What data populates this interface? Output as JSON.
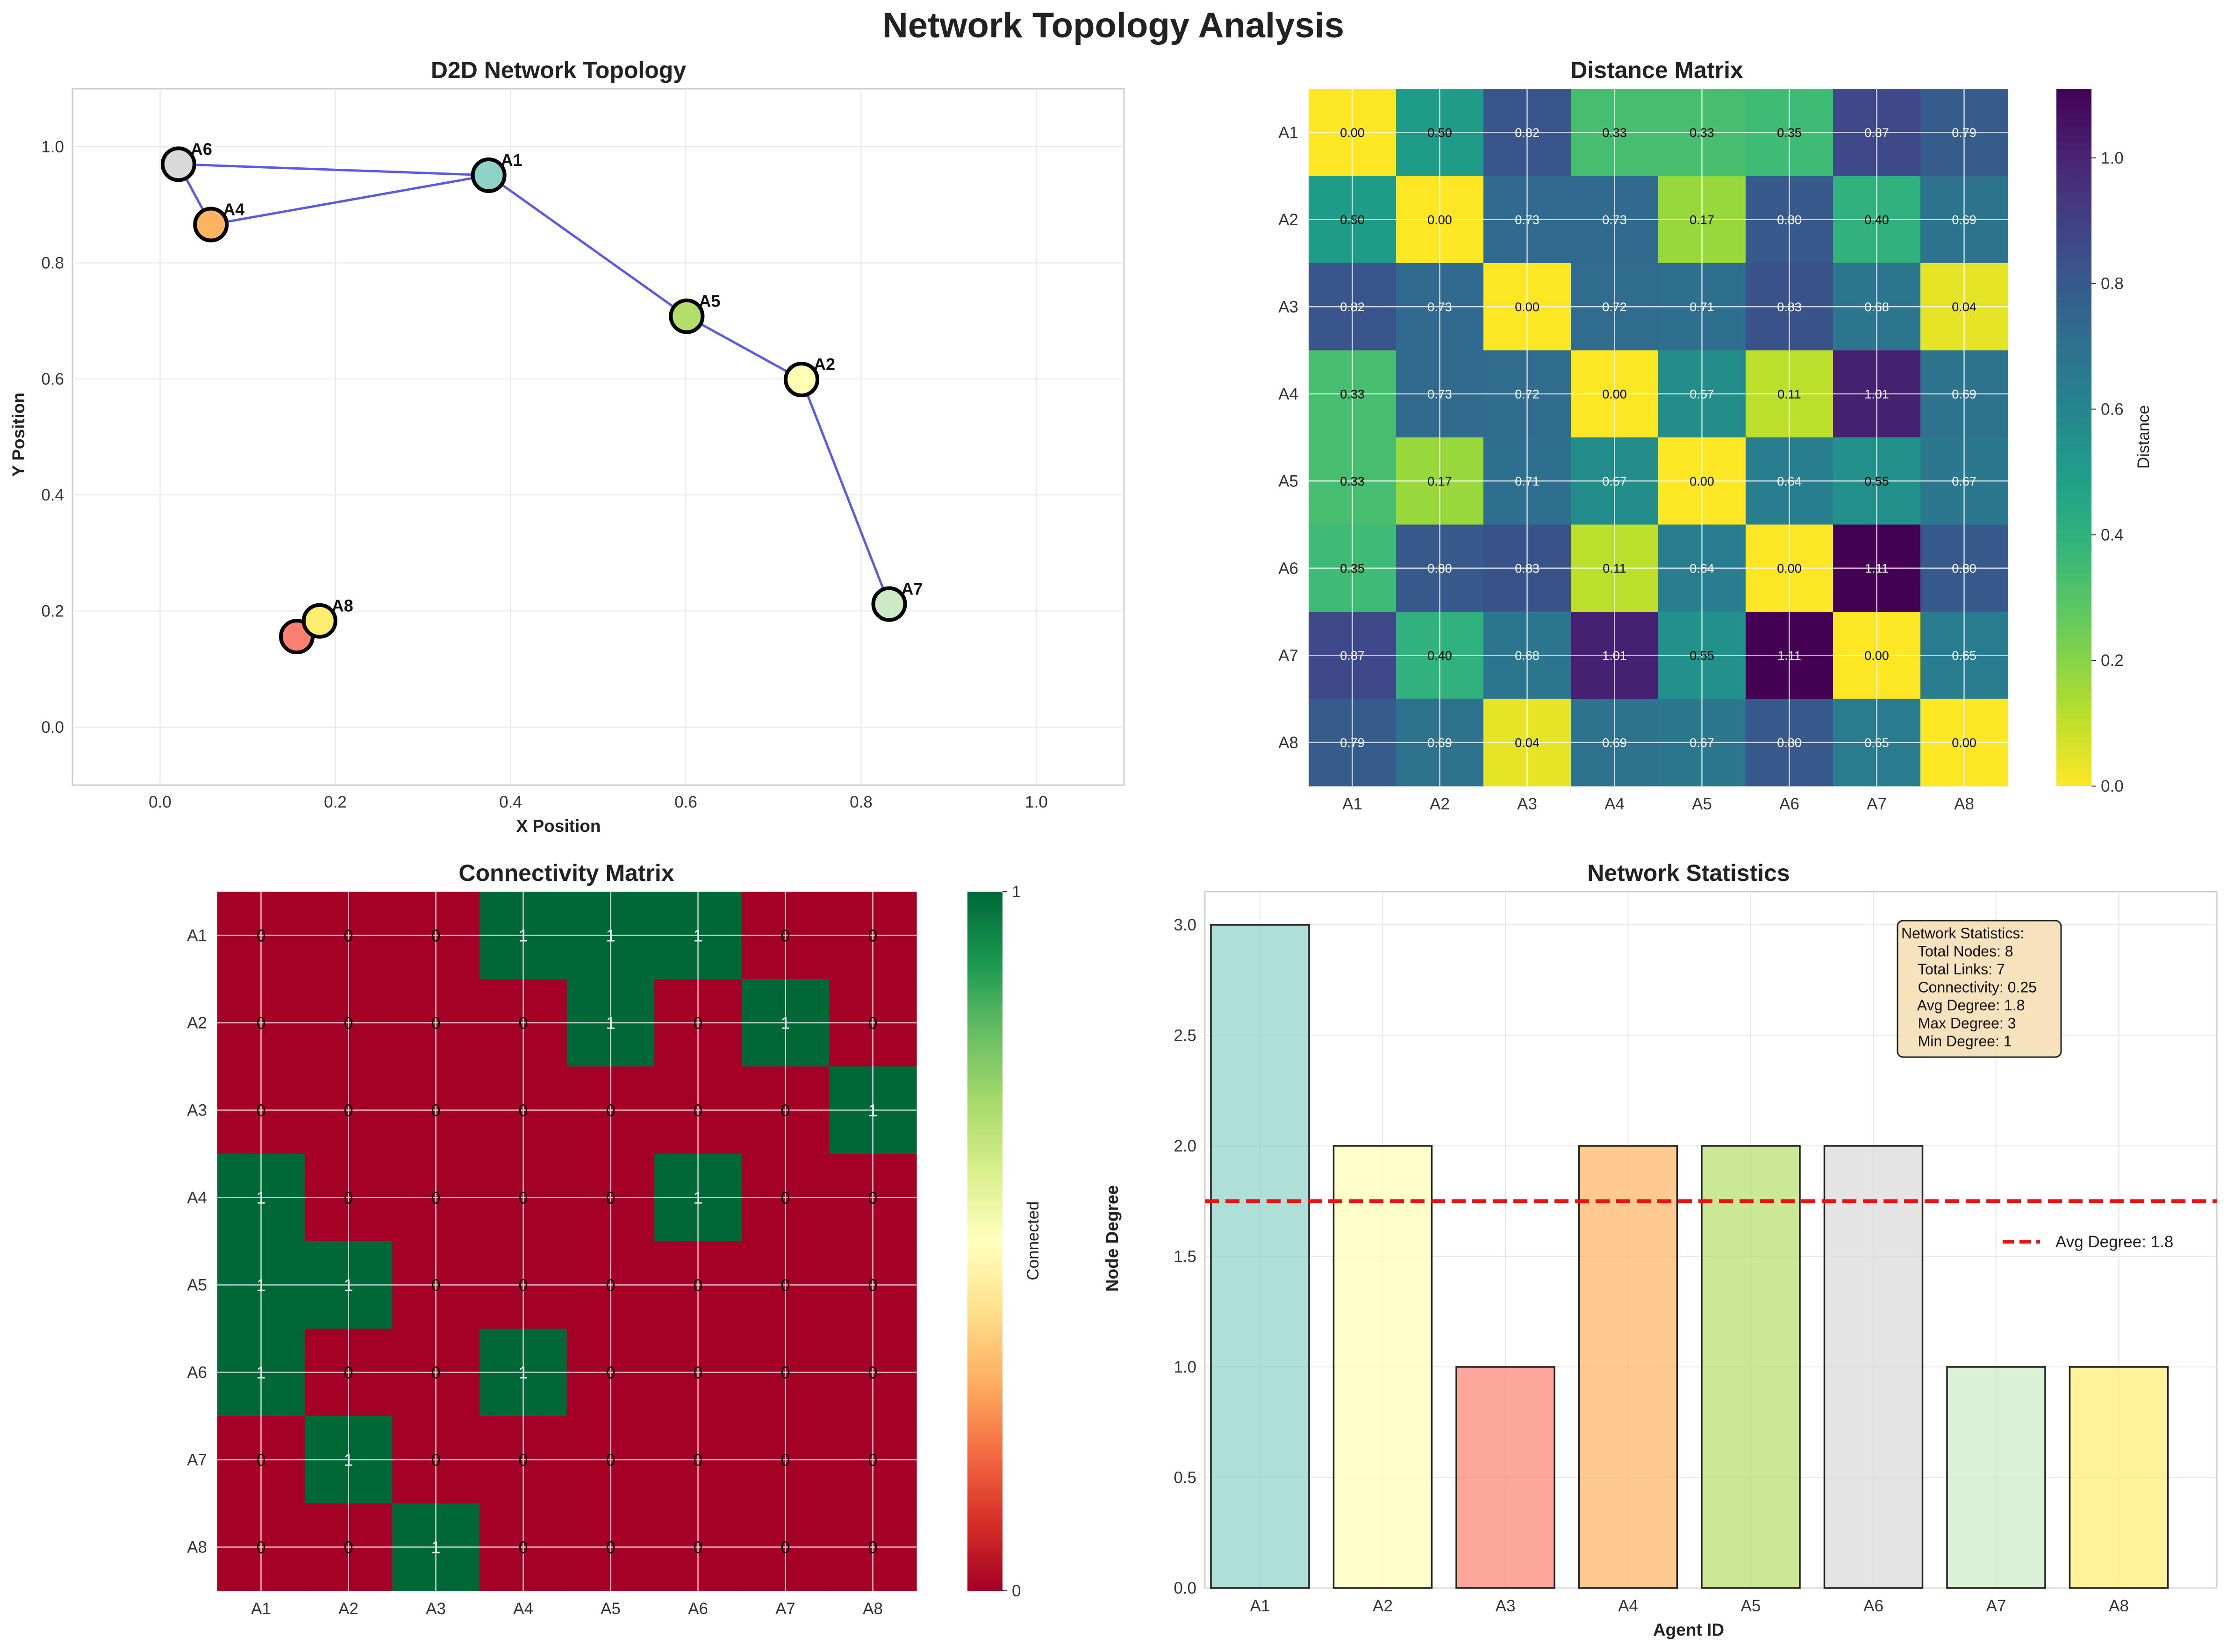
{
  "figure": {
    "title": "Network Topology Analysis"
  },
  "colors": {
    "agents": [
      "#8dd3c7",
      "#ffffb3",
      "#fb8072",
      "#fdb462",
      "#b3de69",
      "#d9d9d9",
      "#ccebc5",
      "#ffed6f"
    ],
    "edge": "#5a5ae6",
    "avg_line": "#ee1111",
    "connected": "#006837",
    "disconnected": "#a50026",
    "stats_box": "#f5deb3"
  },
  "chart_data": [
    {
      "type": "scatter",
      "title": "D2D Network Topology",
      "xlabel": "X Position",
      "ylabel": "Y Position",
      "xlim": [
        -0.1,
        1.1
      ],
      "ylim": [
        -0.1,
        1.1
      ],
      "xticks": [
        "0.0",
        "0.2",
        "0.4",
        "0.6",
        "0.8",
        "1.0"
      ],
      "yticks": [
        "0.0",
        "0.2",
        "0.4",
        "0.6",
        "0.8",
        "1.0"
      ],
      "grid": true,
      "nodes": [
        {
          "id": "A1",
          "x": 0.375,
          "y": 0.951
        },
        {
          "id": "A2",
          "x": 0.732,
          "y": 0.599
        },
        {
          "id": "A3",
          "x": 0.156,
          "y": 0.156
        },
        {
          "id": "A4",
          "x": 0.058,
          "y": 0.866
        },
        {
          "id": "A5",
          "x": 0.601,
          "y": 0.708
        },
        {
          "id": "A6",
          "x": 0.021,
          "y": 0.97
        },
        {
          "id": "A7",
          "x": 0.832,
          "y": 0.212
        },
        {
          "id": "A8",
          "x": 0.182,
          "y": 0.183
        }
      ],
      "edges": [
        [
          "A1",
          "A4"
        ],
        [
          "A1",
          "A5"
        ],
        [
          "A1",
          "A6"
        ],
        [
          "A2",
          "A5"
        ],
        [
          "A2",
          "A7"
        ],
        [
          "A3",
          "A8"
        ],
        [
          "A4",
          "A6"
        ]
      ],
      "labels_shown": [
        "A1",
        "A2",
        "A4",
        "A5",
        "A6",
        "A7",
        "A8"
      ]
    },
    {
      "type": "heatmap",
      "title": "Distance Matrix",
      "colorbar_label": "Distance",
      "colormap": "viridis_r",
      "vmin": 0,
      "vmax": 1.11,
      "colorbar_ticks": [
        "0.0",
        "0.2",
        "0.4",
        "0.6",
        "0.8",
        "1.0"
      ],
      "labels": [
        "A1",
        "A2",
        "A3",
        "A4",
        "A5",
        "A6",
        "A7",
        "A8"
      ],
      "values": [
        [
          0.0,
          0.5,
          0.82,
          0.33,
          0.33,
          0.35,
          0.87,
          0.79
        ],
        [
          0.5,
          0.0,
          0.73,
          0.73,
          0.17,
          0.8,
          0.4,
          0.69
        ],
        [
          0.82,
          0.73,
          0.0,
          0.72,
          0.71,
          0.83,
          0.68,
          0.04
        ],
        [
          0.33,
          0.73,
          0.72,
          0.0,
          0.57,
          0.11,
          1.01,
          0.69
        ],
        [
          0.33,
          0.17,
          0.71,
          0.57,
          0.0,
          0.64,
          0.55,
          0.67
        ],
        [
          0.35,
          0.8,
          0.83,
          0.11,
          0.64,
          0.0,
          1.11,
          0.8
        ],
        [
          0.87,
          0.4,
          0.68,
          1.01,
          0.55,
          1.11,
          0.0,
          0.65
        ],
        [
          0.79,
          0.69,
          0.04,
          0.69,
          0.67,
          0.8,
          0.65,
          0.0
        ]
      ]
    },
    {
      "type": "heatmap",
      "title": "Connectivity Matrix",
      "colorbar_label": "Connected",
      "colormap": "RdYlGn",
      "colorbar_ticks": [
        "0",
        "1"
      ],
      "labels": [
        "A1",
        "A2",
        "A3",
        "A4",
        "A5",
        "A6",
        "A7",
        "A8"
      ],
      "values": [
        [
          0,
          0,
          0,
          1,
          1,
          1,
          0,
          0
        ],
        [
          0,
          0,
          0,
          0,
          1,
          0,
          1,
          0
        ],
        [
          0,
          0,
          0,
          0,
          0,
          0,
          0,
          1
        ],
        [
          1,
          0,
          0,
          0,
          0,
          1,
          0,
          0
        ],
        [
          1,
          1,
          0,
          0,
          0,
          0,
          0,
          0
        ],
        [
          1,
          0,
          0,
          1,
          0,
          0,
          0,
          0
        ],
        [
          0,
          1,
          0,
          0,
          0,
          0,
          0,
          0
        ],
        [
          0,
          0,
          1,
          0,
          0,
          0,
          0,
          0
        ]
      ]
    },
    {
      "type": "bar",
      "title": "Network Statistics",
      "xlabel": "Agent ID",
      "ylabel": "Node Degree",
      "categories": [
        "A1",
        "A2",
        "A3",
        "A4",
        "A5",
        "A6",
        "A7",
        "A8"
      ],
      "values": [
        3,
        2,
        1,
        2,
        2,
        2,
        1,
        1
      ],
      "ylim": [
        0,
        3.15
      ],
      "yticks": [
        "0.0",
        "0.5",
        "1.0",
        "1.5",
        "2.0",
        "2.5",
        "3.0"
      ],
      "avg_line": 1.75,
      "legend": "Avg Degree: 1.8",
      "legend_position": "right",
      "stats_box": [
        "Network Statistics:",
        "    Total Nodes: 8",
        "    Total Links: 7",
        "    Connectivity: 0.25",
        "    Avg Degree: 1.8",
        "    Max Degree: 3",
        "    Min Degree: 1"
      ]
    }
  ]
}
